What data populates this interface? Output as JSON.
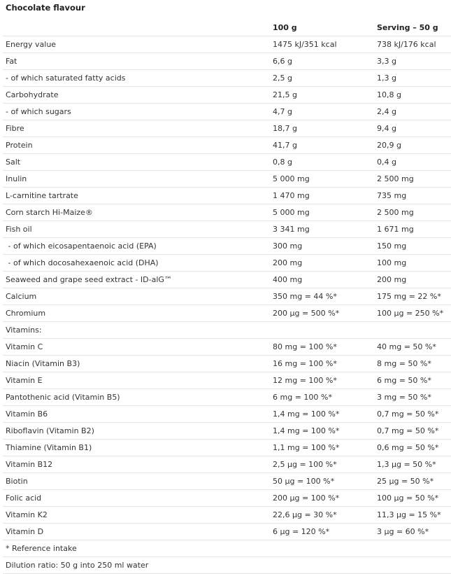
{
  "title": "Chocolate flavour",
  "columns": [
    "",
    "100 g",
    "Serving – 50 g"
  ],
  "rows": [
    [
      "Energy value",
      "1475 kJ/351 kcal",
      "738 kJ/176 kcal"
    ],
    [
      "Fat",
      "6,6 g",
      "3,3 g"
    ],
    [
      "- of which saturated fatty acids",
      "2,5 g",
      "1,3 g"
    ],
    [
      "Carbohydrate",
      "21,5 g",
      "10,8 g"
    ],
    [
      "- of which sugars",
      "4,7 g",
      "2,4 g"
    ],
    [
      "Fibre",
      "18,7 g",
      "9,4 g"
    ],
    [
      "Protein",
      "41,7 g",
      "20,9 g"
    ],
    [
      "Salt",
      "0,8 g",
      "0,4 g"
    ],
    [
      "Inulin",
      "5 000 mg",
      "2 500 mg"
    ],
    [
      "L-carnitine tartrate",
      "1 470 mg",
      "735 mg"
    ],
    [
      "Corn starch Hi-Maize®",
      "5 000 mg",
      "2 500 mg"
    ],
    [
      "Fish oil",
      "3 341 mg",
      "1 671 mg"
    ],
    [
      " - of which eicosapentaenoic acid (EPA)",
      "300 mg",
      "150 mg"
    ],
    [
      " - of which docosahexaenoic acid (DHA)",
      "200 mg",
      "100 mg"
    ],
    [
      "Seaweed and grape seed extract - ID-alG™",
      "400 mg",
      "200 mg"
    ],
    [
      "Calcium",
      "350 mg = 44 %*",
      "175 mg = 22 %*"
    ],
    [
      "Chromium",
      "200 μg = 500 %*",
      "100 μg = 250 %*"
    ],
    [
      "Vitamins:",
      "",
      ""
    ],
    [
      "Vitamin C",
      "80 mg = 100 %*",
      "40 mg = 50 %*"
    ],
    [
      "Niacin (Vitamin B3)",
      "16 mg = 100 %*",
      "8 mg = 50 %*"
    ],
    [
      "Vitamin E",
      "12 mg = 100 %*",
      "6 mg = 50 %*"
    ],
    [
      "Pantothenic acid (Vitamin B5)",
      "6 mg = 100 %*",
      "3 mg = 50 %*"
    ],
    [
      "Vitamin B6",
      "1,4 mg = 100 %*",
      "0,7 mg = 50 %*"
    ],
    [
      "Riboflavin (Vitamin B2)",
      "1,4 mg = 100 %*",
      "0,7 mg = 50 %*"
    ],
    [
      "Thiamine (Vitamin B1)",
      "1,1 mg = 100 %*",
      "0,6 mg = 50 %*"
    ],
    [
      "Vitamin B12",
      "2,5 μg = 100 %*",
      "1,3 μg = 50 %*"
    ],
    [
      "Biotin",
      "50 μg = 100 %*",
      "25 μg = 50 %*"
    ],
    [
      "Folic acid",
      "200 μg = 100 %*",
      "100 μg = 50 %*"
    ],
    [
      "Vitamin K2",
      "22,6 μg = 30 %*",
      "11,3 μg = 15 %*"
    ],
    [
      "Vitamin D",
      "6 μg = 120 %*",
      "3 μg = 60 %*"
    ],
    [
      "* Reference intake",
      "",
      ""
    ],
    [
      "Dilution ratio: 50 g into 250 ml water",
      "",
      ""
    ]
  ]
}
